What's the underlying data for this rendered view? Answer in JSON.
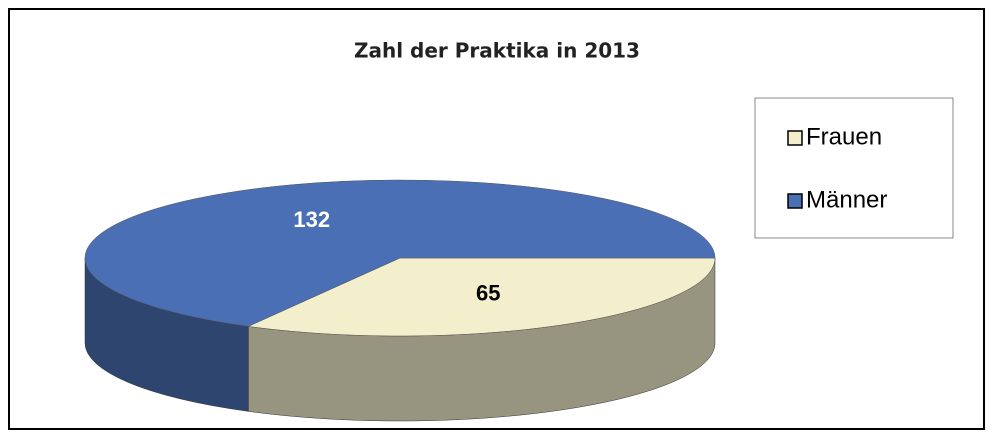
{
  "chart_data": {
    "type": "pie",
    "title": "Zahl der Praktika in 2013",
    "categories": [
      "Frauen",
      "Männer"
    ],
    "values": [
      65,
      132
    ],
    "colors": [
      "#f3efcd",
      "#4a6fb5"
    ],
    "legend": "right"
  }
}
